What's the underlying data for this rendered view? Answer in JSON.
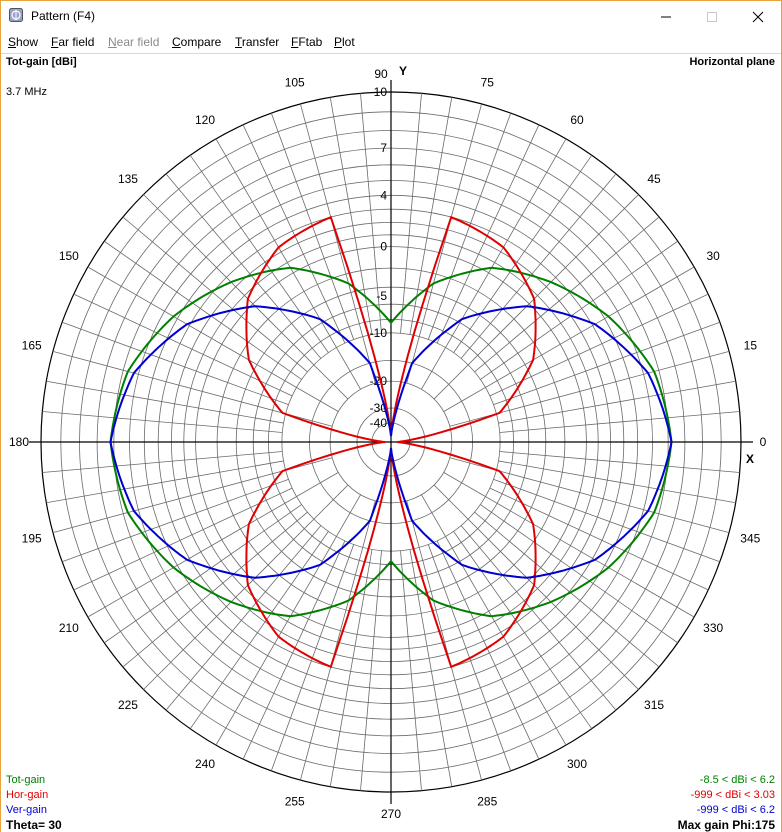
{
  "window": {
    "title": "Pattern   (F4)",
    "icon": "antenna-app-icon",
    "controls": [
      "minimize-icon",
      "maximize-icon",
      "close-icon"
    ]
  },
  "menu": {
    "items": [
      {
        "label": "Show",
        "enabled": true
      },
      {
        "label": "Far field",
        "enabled": true
      },
      {
        "label": "Near field",
        "enabled": false
      },
      {
        "label": "Compare",
        "enabled": true
      },
      {
        "label": "Transfer",
        "enabled": true
      },
      {
        "label": "FFtab",
        "enabled": true
      },
      {
        "label": "Plot",
        "enabled": true
      }
    ]
  },
  "plot": {
    "header_left": "Tot-gain [dBi]",
    "header_right": "Horizontal plane",
    "frequency": "3.7 MHz",
    "axis_y": "Y",
    "axis_x": "X",
    "angle_labels": [
      "0",
      "15",
      "30",
      "45",
      "60",
      "75",
      "90",
      "105",
      "120",
      "135",
      "150",
      "165",
      "180",
      "195",
      "210",
      "225",
      "240",
      "255",
      "270",
      "285",
      "300",
      "315",
      "330",
      "345"
    ],
    "ring_labels": [
      "10",
      "7",
      "4",
      "0",
      "-5",
      "-10",
      "-20",
      "-30",
      "-40"
    ],
    "legend": [
      {
        "name": "Tot-gain",
        "color": "#008000",
        "range": "-8.5 < dBi < 6.2"
      },
      {
        "name": "Hor-gain",
        "color": "#e00000",
        "range": "-999 < dBi < 3.03"
      },
      {
        "name": "Ver-gain",
        "color": "#0000d0",
        "range": "-999 < dBi < 6.2"
      }
    ],
    "theta": "Theta= 30",
    "max_gain": "Max gain Phi:175"
  },
  "chart_data": {
    "type": "polar",
    "title": "Horizontal plane",
    "radial_label": "Tot-gain [dBi]",
    "radial_ticks_dbi": [
      10,
      7,
      4,
      0,
      -5,
      -10,
      -20,
      -30,
      -40
    ],
    "angle_ticks_deg": [
      0,
      15,
      30,
      45,
      60,
      75,
      90,
      105,
      120,
      135,
      150,
      165,
      180,
      195,
      210,
      225,
      240,
      255,
      270,
      285,
      300,
      315,
      330,
      345
    ],
    "series": [
      {
        "name": "Tot-gain",
        "color": "#008000",
        "min_dbi": -8.5,
        "max_dbi": 6.2,
        "phi_deg": [
          0,
          15,
          30,
          45,
          60,
          75,
          90
        ],
        "gain_dbi": [
          6.2,
          5.7,
          4.3,
          2.5,
          0.5,
          -3.0,
          -8.5
        ]
      },
      {
        "name": "Hor-gain",
        "color": "#e00000",
        "min_dbi": -999,
        "max_dbi": 3.03,
        "phi_deg": [
          0,
          15,
          30,
          45,
          60,
          75,
          90
        ],
        "gain_dbi": [
          -999,
          -9.5,
          -3.0,
          0.6,
          2.4,
          3.0,
          -999
        ]
      },
      {
        "name": "Ver-gain",
        "color": "#0000d0",
        "min_dbi": -999,
        "max_dbi": 6.2,
        "phi_deg": [
          0,
          15,
          30,
          45,
          60,
          75,
          90
        ],
        "gain_dbi": [
          6.2,
          5.3,
          3.2,
          -0.3,
          -5.5,
          -15.0,
          -999
        ]
      }
    ]
  }
}
